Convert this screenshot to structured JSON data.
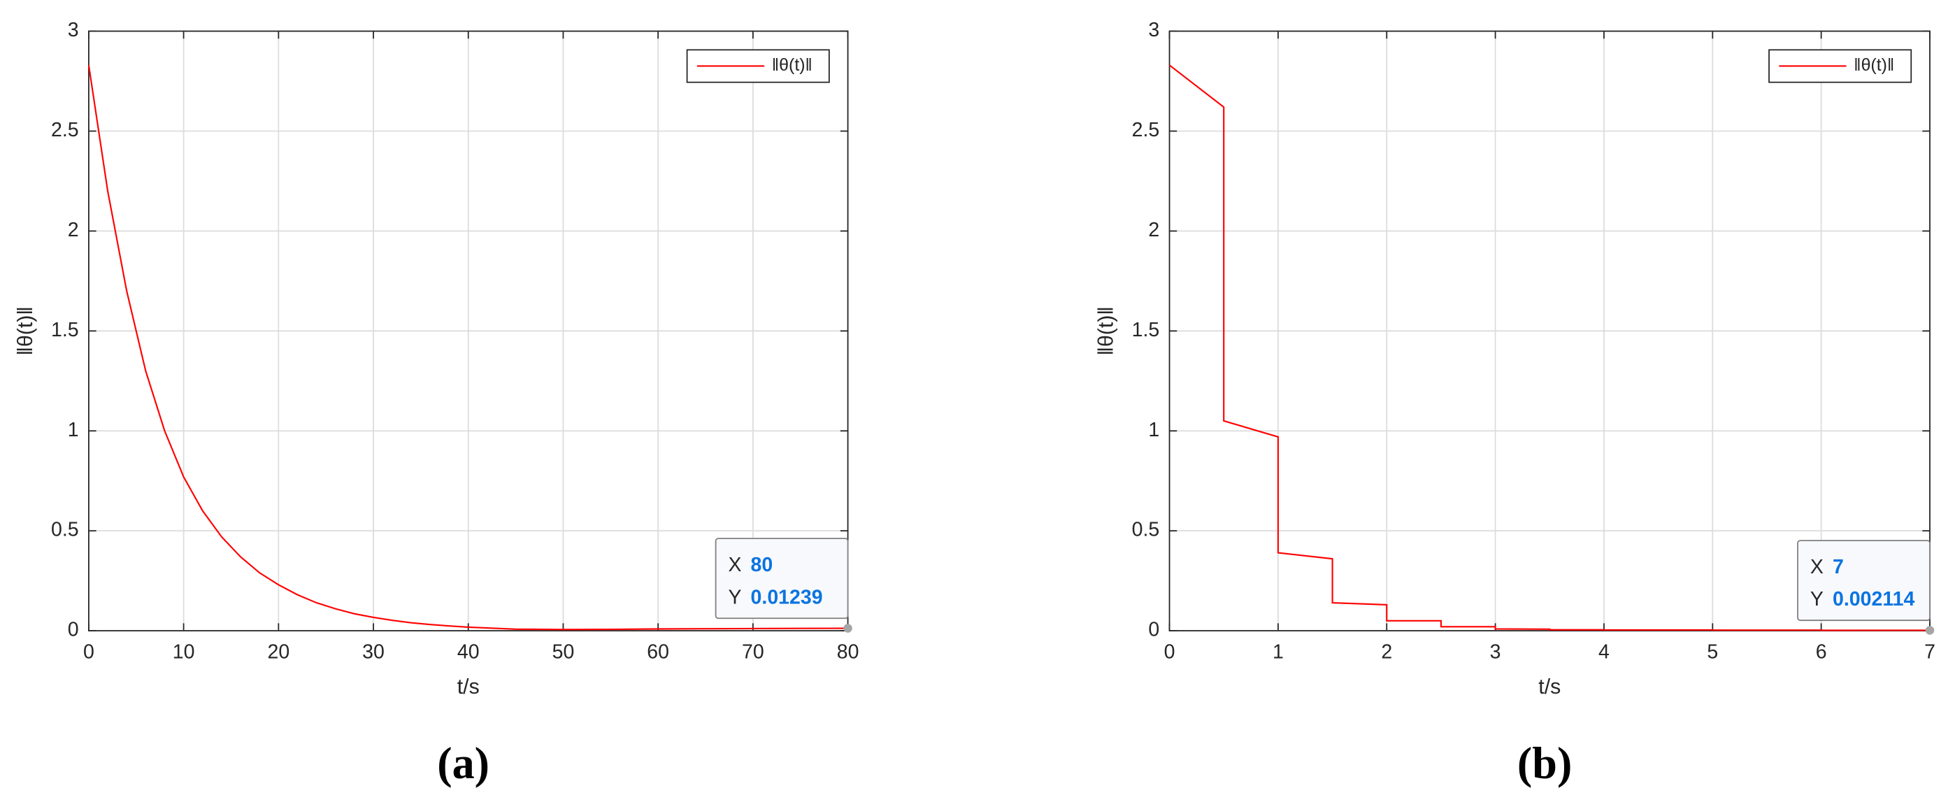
{
  "chart_data": [
    {
      "type": "line",
      "panel_label": "(a)",
      "xlabel": "t/s",
      "ylabel": "‖θ(t)‖",
      "x": [
        0,
        2,
        4,
        6,
        8,
        10,
        12,
        14,
        16,
        18,
        20,
        22,
        24,
        26,
        28,
        30,
        32,
        34,
        36,
        38,
        40,
        45,
        50,
        55,
        60,
        65,
        70,
        75,
        80
      ],
      "series": [
        {
          "name": "‖θ(t)‖",
          "color": "#ff0000",
          "values": [
            2.83,
            2.2,
            1.7,
            1.3,
            1.0,
            0.77,
            0.6,
            0.47,
            0.37,
            0.29,
            0.23,
            0.18,
            0.14,
            0.11,
            0.085,
            0.067,
            0.052,
            0.04,
            0.031,
            0.024,
            0.018,
            0.008,
            0.006,
            0.007,
            0.009,
            0.01,
            0.011,
            0.012,
            0.01239
          ]
        }
      ],
      "xlim": [
        0,
        80
      ],
      "xticks": [
        0,
        10,
        20,
        30,
        40,
        50,
        60,
        70,
        80
      ],
      "ylim": [
        0,
        3
      ],
      "yticks": [
        0,
        0.5,
        1,
        1.5,
        2,
        2.5,
        3
      ],
      "grid": true,
      "legend": "upper right",
      "datatip": {
        "x_label": "X",
        "x": 80,
        "y_label": "Y",
        "y": 0.01239
      }
    },
    {
      "type": "line",
      "panel_label": "(b)",
      "xlabel": "t/s",
      "ylabel": "‖θ(t)‖",
      "x": [
        0,
        0.5,
        0.5,
        1,
        1,
        1.5,
        1.5,
        2,
        2,
        2.5,
        2.5,
        3,
        3,
        3.5,
        3.5,
        4,
        4,
        5,
        5,
        6,
        6,
        7
      ],
      "series": [
        {
          "name": "‖θ(t)‖",
          "color": "#ff0000",
          "values": [
            2.83,
            2.62,
            1.05,
            0.97,
            0.39,
            0.36,
            0.14,
            0.13,
            0.05,
            0.05,
            0.02,
            0.02,
            0.009,
            0.008,
            0.005,
            0.005,
            0.004,
            0.004,
            0.003,
            0.003,
            0.002,
            0.002114
          ]
        }
      ],
      "xlim": [
        0,
        7
      ],
      "xticks": [
        0,
        1,
        2,
        3,
        4,
        5,
        6,
        7
      ],
      "ylim": [
        0,
        3
      ],
      "yticks": [
        0,
        0.5,
        1,
        1.5,
        2,
        2.5,
        3
      ],
      "grid": true,
      "legend": "upper right",
      "datatip": {
        "x_label": "X",
        "x": 7,
        "y_label": "Y",
        "y": 0.002114
      }
    }
  ]
}
